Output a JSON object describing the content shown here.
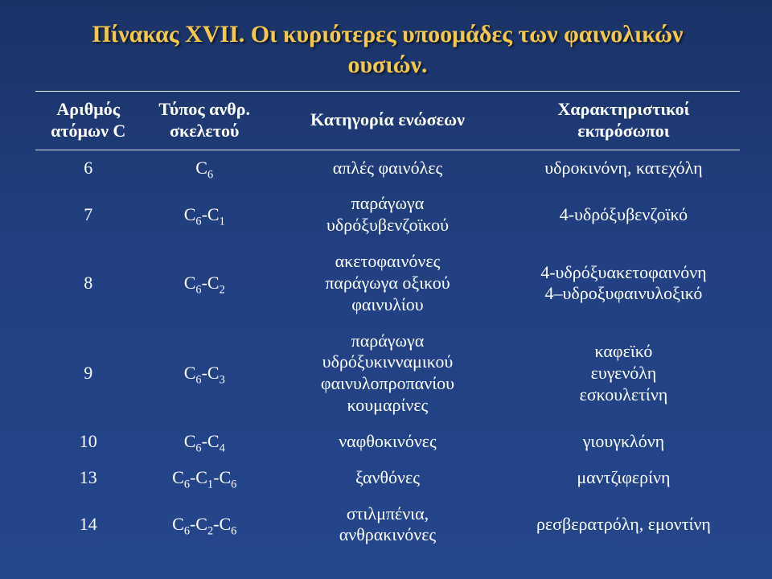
{
  "title_line1": "Πίνακας XVII. Οι κυριότερες υποομάδες των φαινολικών",
  "title_line2": "ουσιών.",
  "headers": {
    "col1_l1": "Αριθμός",
    "col1_l2": "ατόμων C",
    "col2_l1": "Τύπος ανθρ.",
    "col2_l2": "σκελετού",
    "col3": "Κατηγορία ενώσεων",
    "col4_l1": "Χαρακτηριστικοί",
    "col4_l2": "εκπρόσωποι"
  },
  "rows": [
    {
      "n": "6",
      "skeleton_html": "C<span class=\"sub\">6</span>",
      "category_lines": [
        "απλές φαινόλες"
      ],
      "reps_lines": [
        "υδροκινόνη, κατεχόλη"
      ]
    },
    {
      "n": "7",
      "skeleton_html": "C<span class=\"sub\">6</span>-C<span class=\"sub\">1</span>",
      "category_lines": [
        "παράγωγα",
        "υδρόξυβενζοϊκού"
      ],
      "reps_lines": [
        "4-υδρόξυβενζοϊκό"
      ]
    },
    {
      "n": "8",
      "skeleton_html": "C<span class=\"sub\">6</span>-C<span class=\"sub\">2</span>",
      "category_lines": [
        "ακετοφαινόνες",
        "παράγωγα οξικού",
        "φαινυλίου"
      ],
      "reps_lines": [
        "4-υδρόξυακετοφαινόνη",
        "4–υδροξυφαινυλοξικό"
      ]
    },
    {
      "n": "9",
      "skeleton_html": "C<span class=\"sub\">6</span>-C<span class=\"sub\">3</span>",
      "category_lines": [
        "παράγωγα",
        "υδρόξυκινναμικού",
        "φαινυλοπροπανίου",
        "κουμαρίνες"
      ],
      "reps_lines": [
        "καφεϊκό",
        "ευγενόλη",
        "εσκουλετίνη"
      ]
    },
    {
      "n": "10",
      "skeleton_html": "C<span class=\"sub\">6</span>-C<span class=\"sub\">4</span>",
      "category_lines": [
        "ναφθοκινόνες"
      ],
      "reps_lines": [
        "γιουγκλόνη"
      ]
    },
    {
      "n": "13",
      "skeleton_html": "C<span class=\"sub\">6</span>-C<span class=\"sub\">1</span>-C<span class=\"sub\">6</span>",
      "category_lines": [
        "ξανθόνες"
      ],
      "reps_lines": [
        "μαντζιφερίνη"
      ]
    },
    {
      "n": "14",
      "skeleton_html": "C<span class=\"sub\">6</span>-C<span class=\"sub\">2</span>-C<span class=\"sub\">6</span>",
      "category_lines": [
        "στιλμπένια,",
        "ανθρακινόνες"
      ],
      "reps_lines": [
        "ρεσβερατρόλη, εμοντίνη"
      ]
    }
  ],
  "style": {
    "title_color": "#f5c84a",
    "text_color": "#ffffff",
    "bg_top": "#1a3266",
    "bg_bottom": "#24468c",
    "rule_color": "#ffffff",
    "title_fontsize": 30,
    "cell_fontsize": 22
  }
}
